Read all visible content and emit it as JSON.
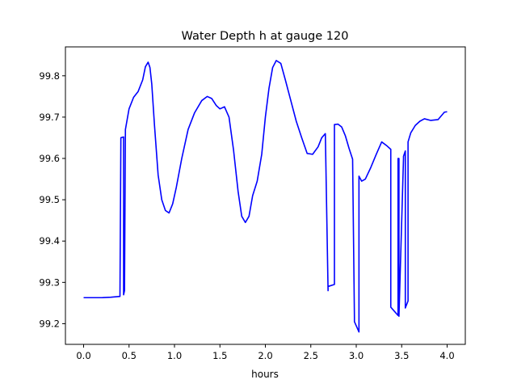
{
  "chart_data": {
    "type": "line",
    "title": "Water Depth h at gauge 120",
    "xlabel": "hours",
    "ylabel": "",
    "xlim": [
      -0.2,
      4.2
    ],
    "ylim": [
      99.15,
      99.87
    ],
    "x_ticks": [
      0.0,
      0.5,
      1.0,
      1.5,
      2.0,
      2.5,
      3.0,
      3.5,
      4.0
    ],
    "x_tick_labels": [
      "0.0",
      "0.5",
      "1.0",
      "1.5",
      "2.0",
      "2.5",
      "3.0",
      "3.5",
      "4.0"
    ],
    "y_ticks": [
      99.2,
      99.3,
      99.4,
      99.5,
      99.6,
      99.7,
      99.8
    ],
    "y_tick_labels": [
      "99.2",
      "99.3",
      "99.4",
      "99.5",
      "99.6",
      "99.7",
      "99.8"
    ],
    "grid": false,
    "legend": "none",
    "series": [
      {
        "color": "#0000ff",
        "x": [
          0.0,
          0.1,
          0.2,
          0.3,
          0.4,
          0.41,
          0.41,
          0.44,
          0.44,
          0.45,
          0.46,
          0.46,
          0.5,
          0.55,
          0.6,
          0.65,
          0.68,
          0.71,
          0.73,
          0.75,
          0.78,
          0.82,
          0.86,
          0.9,
          0.94,
          0.98,
          1.02,
          1.08,
          1.15,
          1.22,
          1.3,
          1.36,
          1.41,
          1.46,
          1.5,
          1.55,
          1.6,
          1.65,
          1.7,
          1.74,
          1.78,
          1.82,
          1.86,
          1.91,
          1.96,
          2.0,
          2.04,
          2.08,
          2.12,
          2.17,
          2.22,
          2.28,
          2.34,
          2.4,
          2.46,
          2.52,
          2.58,
          2.62,
          2.66,
          2.69,
          2.69,
          2.76,
          2.76,
          2.8,
          2.84,
          2.88,
          2.92,
          2.96,
          2.98,
          2.98,
          3.01,
          3.03,
          3.03,
          3.06,
          3.1,
          3.16,
          3.22,
          3.28,
          3.34,
          3.38,
          3.38,
          3.46,
          3.46,
          3.47,
          3.47,
          3.52,
          3.52,
          3.54,
          3.54,
          3.57,
          3.57,
          3.6,
          3.65,
          3.7,
          3.75,
          3.82,
          3.9,
          3.97,
          4.0
        ],
        "y": [
          99.263,
          99.263,
          99.263,
          99.264,
          99.266,
          99.648,
          99.65,
          99.652,
          99.27,
          99.28,
          99.665,
          99.67,
          99.72,
          99.748,
          99.762,
          99.79,
          99.822,
          99.833,
          99.82,
          99.78,
          99.68,
          99.56,
          99.5,
          99.474,
          99.468,
          99.49,
          99.53,
          99.6,
          99.67,
          99.71,
          99.74,
          99.75,
          99.745,
          99.728,
          99.72,
          99.725,
          99.7,
          99.62,
          99.52,
          99.46,
          99.445,
          99.46,
          99.51,
          99.545,
          99.61,
          99.7,
          99.77,
          99.82,
          99.837,
          99.83,
          99.79,
          99.74,
          99.69,
          99.65,
          99.612,
          99.61,
          99.628,
          99.65,
          99.66,
          99.28,
          99.29,
          99.295,
          99.682,
          99.683,
          99.676,
          99.655,
          99.625,
          99.598,
          99.215,
          99.205,
          99.19,
          99.18,
          99.557,
          99.545,
          99.55,
          99.578,
          99.61,
          99.64,
          99.63,
          99.622,
          99.24,
          99.22,
          99.6,
          99.6,
          99.218,
          99.6,
          99.605,
          99.618,
          99.238,
          99.255,
          99.64,
          99.662,
          99.68,
          99.69,
          99.696,
          99.692,
          99.694,
          99.712,
          99.713
        ]
      }
    ]
  }
}
